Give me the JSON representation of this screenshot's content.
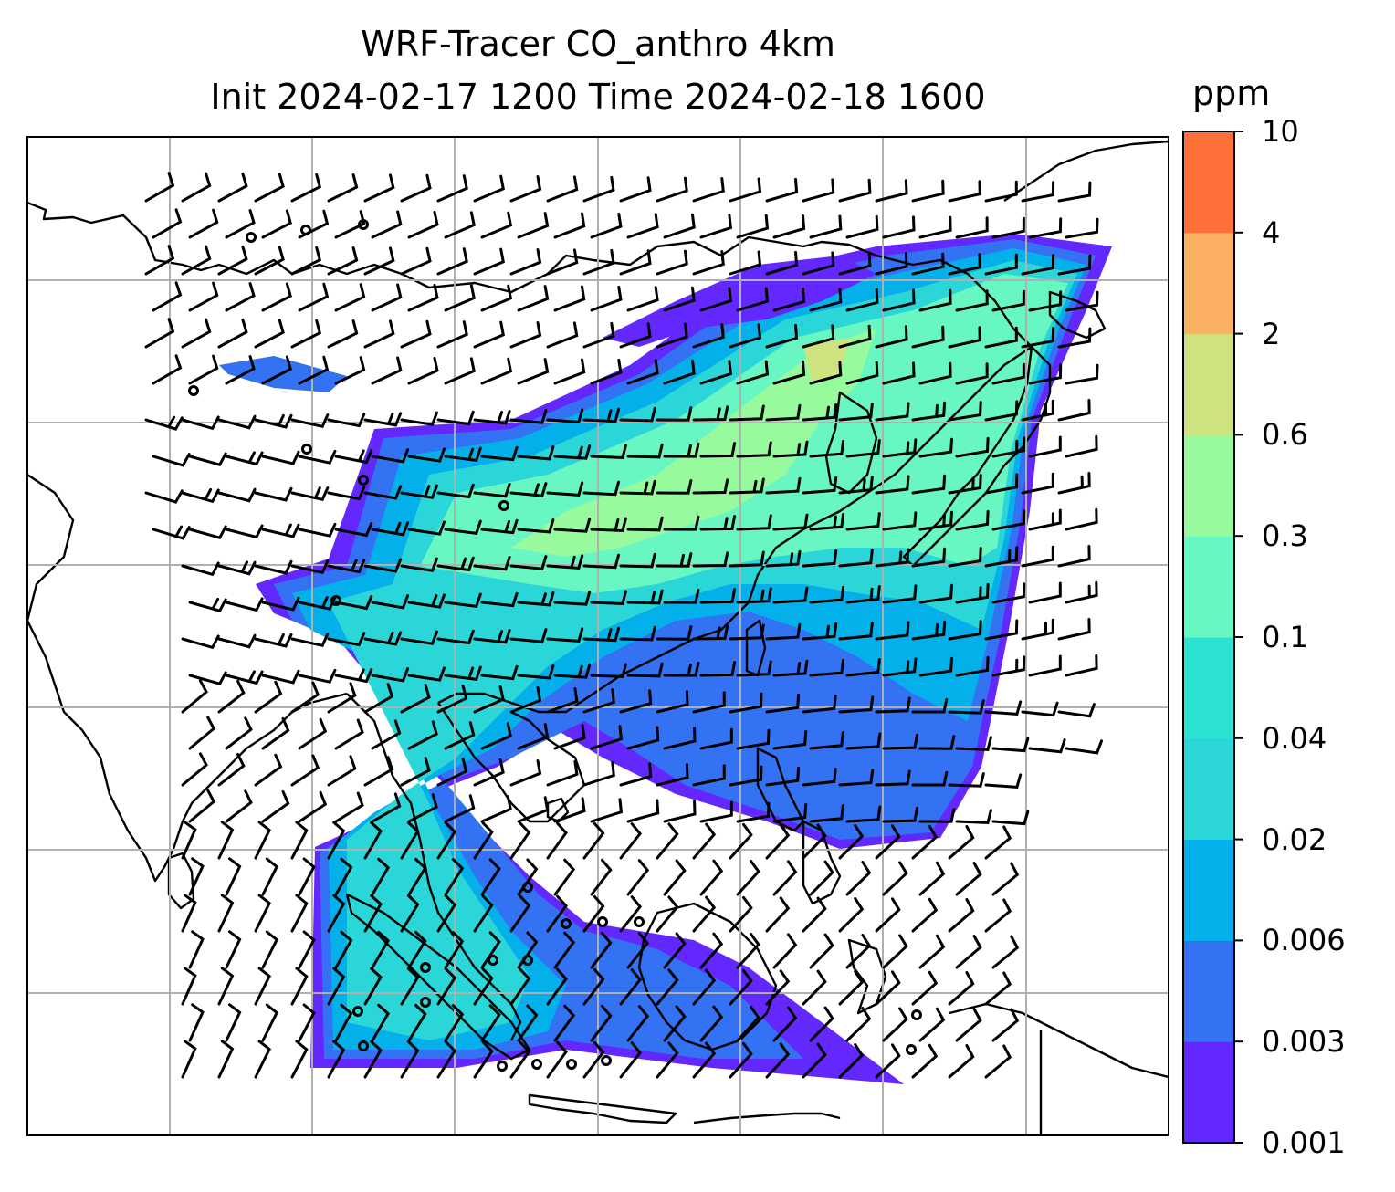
{
  "title": {
    "line1": "WRF-Tracer CO_anthro 4km",
    "line2": "Init 2024-02-17 1200 Time 2024-02-18 1600"
  },
  "colorbar": {
    "unit": "ppm",
    "ticks": [
      "0.001",
      "0.003",
      "0.006",
      "0.02",
      "0.02",
      "0.04",
      "0.1",
      "0.3",
      "0.6",
      "2",
      "4",
      "10"
    ],
    "bins": [
      "#6328fe",
      "#3472f4",
      "#04b0ea",
      "#2ad6d8",
      "#2ce2d2",
      "#68f7c2",
      "#97fa9c",
      "#cee37f",
      "#fcb062",
      "#ff7039",
      "#ff2c1a"
    ]
  },
  "colors": {
    "coastline": "#000000",
    "gridline": "#b0b0b0",
    "barb": "#000000"
  },
  "layers": [
    "tracer-shading",
    "coastlines",
    "gridlines",
    "wind-barbs",
    "calm-wind-circles"
  ]
}
